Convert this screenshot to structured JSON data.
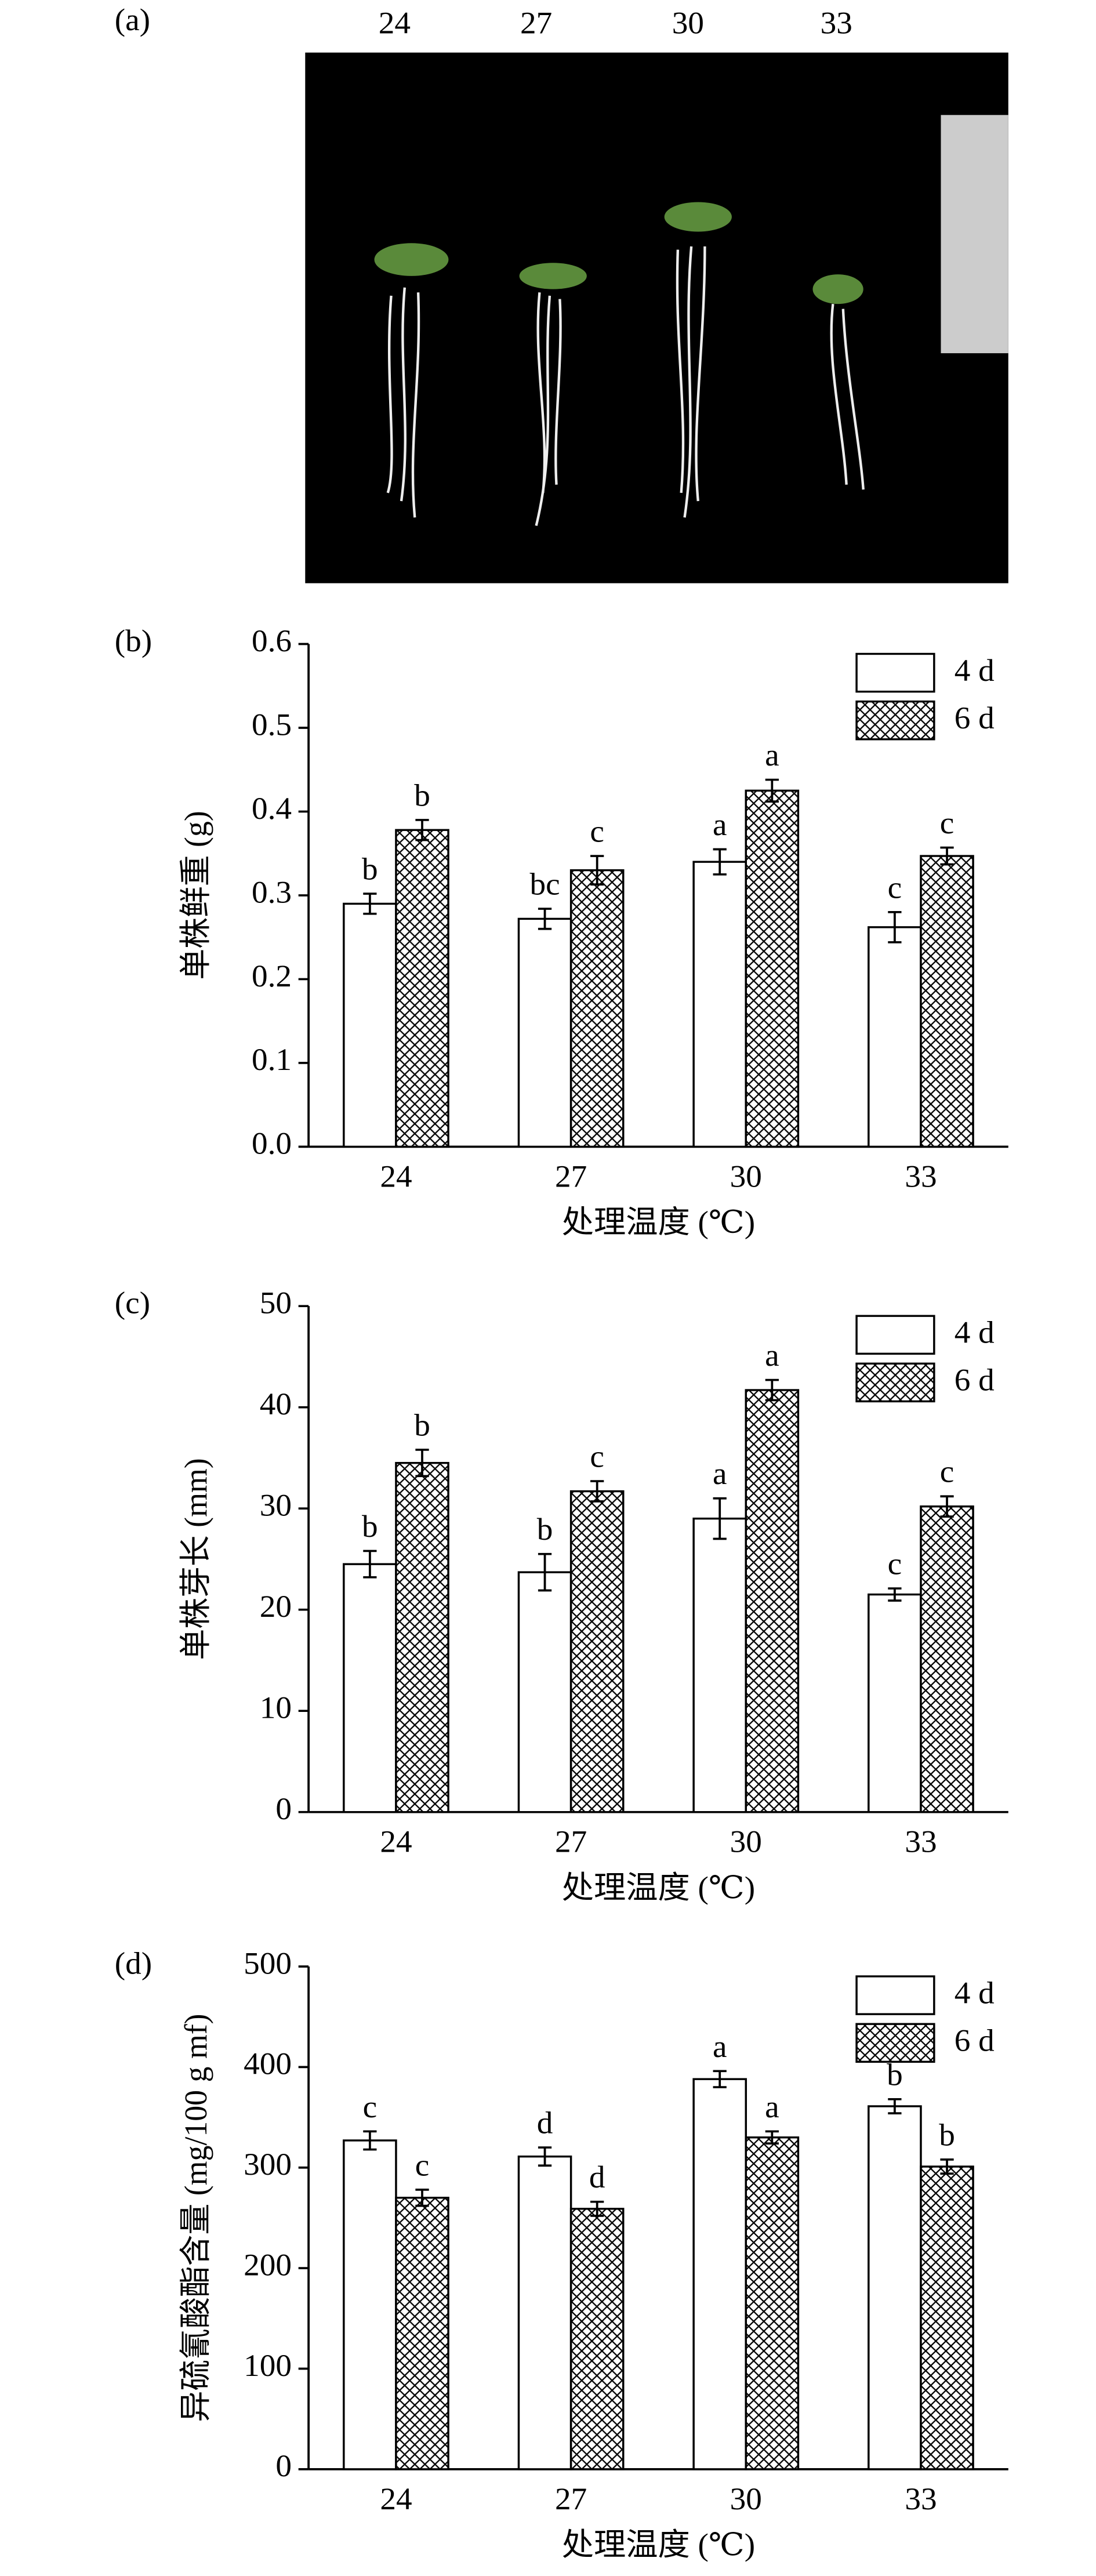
{
  "photo": {
    "panel": "(a)",
    "labels": [
      "24",
      "27",
      "30",
      "33"
    ]
  },
  "chart_data": [
    {
      "type": "bar",
      "panel": "(b)",
      "y_label": "单株鲜重 (g)",
      "x_label": "处理温度 (℃)",
      "categories": [
        "24",
        "27",
        "30",
        "33"
      ],
      "series": [
        {
          "name": "4 d",
          "color": "#000000",
          "hatch": false,
          "values": [
            0.29,
            0.272,
            0.34,
            0.262
          ],
          "errors": [
            0.012,
            0.012,
            0.015,
            0.018
          ],
          "annotations": [
            "b",
            "bc",
            "a",
            "c"
          ]
        },
        {
          "name": "6 d",
          "color": "#000000",
          "hatch": true,
          "values": [
            0.378,
            0.33,
            0.425,
            0.347
          ],
          "errors": [
            0.012,
            0.017,
            0.013,
            0.01
          ],
          "annotations": [
            "b",
            "c",
            "a",
            "c"
          ]
        }
      ],
      "ylim": [
        0,
        0.6
      ],
      "yticks": [
        {
          "value": 0,
          "label": "0.0"
        },
        0.1,
        0.2,
        0.3,
        0.4,
        0.5,
        0.6
      ],
      "legend": "upper right"
    },
    {
      "type": "bar",
      "panel": "(c)",
      "y_label": "单株芽长 (mm)",
      "x_label": "处理温度 (℃)",
      "categories": [
        "24",
        "27",
        "30",
        "33"
      ],
      "series": [
        {
          "name": "4 d",
          "color": "#000000",
          "hatch": false,
          "values": [
            24.5,
            23.7,
            29,
            21.5
          ],
          "errors": [
            1.3,
            1.8,
            2,
            0.6
          ],
          "annotations": [
            "b",
            "b",
            "a",
            "c"
          ]
        },
        {
          "name": "6 d",
          "color": "#000000",
          "hatch": true,
          "values": [
            34.5,
            31.7,
            41.7,
            30.2
          ],
          "errors": [
            1.3,
            1,
            1,
            1
          ],
          "annotations": [
            "b",
            "c",
            "a",
            "c"
          ]
        }
      ],
      "ylim": [
        0,
        50
      ],
      "yticks": [
        0,
        10,
        20,
        30,
        40,
        50
      ],
      "legend": "upper right"
    },
    {
      "type": "bar",
      "panel": "(d)",
      "y_label": "异硫氰酸酯含量 (mg/100 g mf)",
      "x_label": "处理温度 (℃)",
      "categories": [
        "24",
        "27",
        "30",
        "33"
      ],
      "series": [
        {
          "name": "4 d",
          "color": "#000000",
          "hatch": false,
          "values": [
            327,
            311,
            388,
            361
          ],
          "errors": [
            9,
            9,
            8,
            7
          ],
          "annotations": [
            "c",
            "d",
            "a",
            "b"
          ]
        },
        {
          "name": "6 d",
          "color": "#000000",
          "hatch": true,
          "values": [
            270,
            259,
            330,
            301
          ],
          "errors": [
            8,
            7,
            6,
            7
          ],
          "annotations": [
            "c",
            "d",
            "a",
            "b"
          ]
        }
      ],
      "ylim": [
        0,
        500
      ],
      "yticks": [
        0,
        100,
        200,
        300,
        400,
        500
      ],
      "legend": "upper right"
    }
  ]
}
